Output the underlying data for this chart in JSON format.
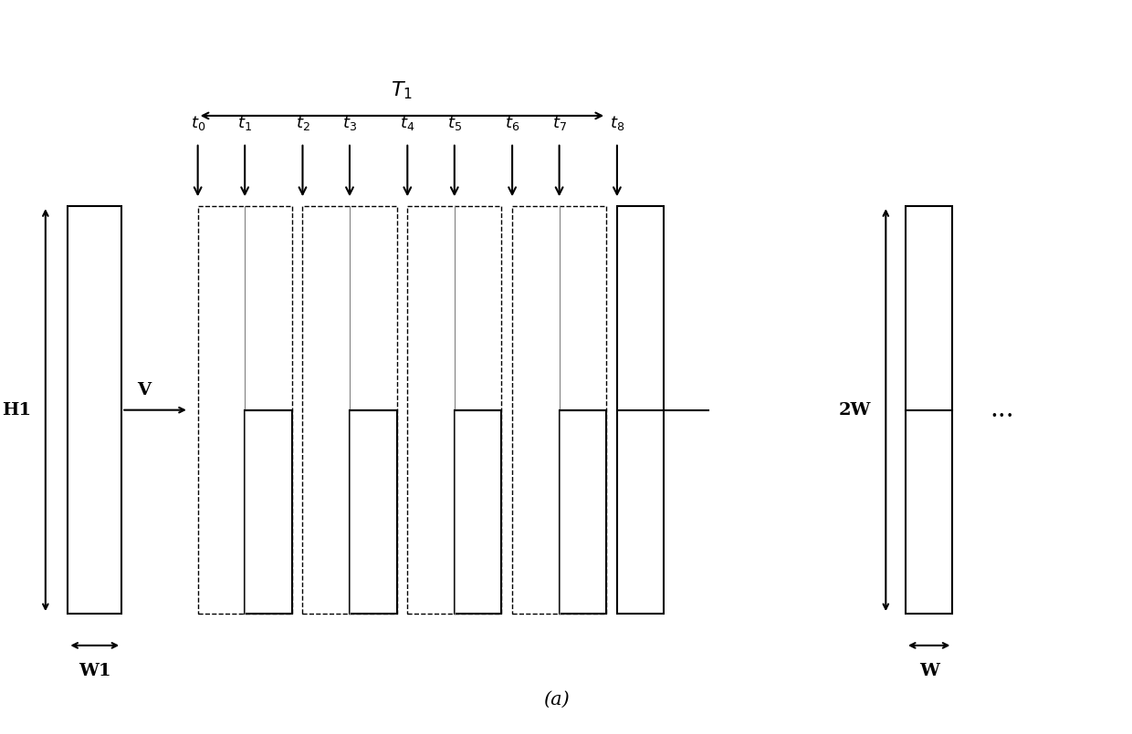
{
  "fig_width": 12.4,
  "fig_height": 8.05,
  "bg_color": "#ffffff",
  "title_label": "(a)",
  "H1_label": "H1",
  "W1_label": "W1",
  "V_label": "V",
  "T1_label": "T",
  "t_labels": [
    "t",
    "t",
    "t",
    "t",
    "t",
    "t",
    "t",
    "t",
    "t"
  ],
  "t_subs": [
    "0",
    "1",
    "2",
    "3",
    "4",
    "5",
    "6",
    "7",
    "8"
  ],
  "label_2W": "2W",
  "label_W": "W"
}
